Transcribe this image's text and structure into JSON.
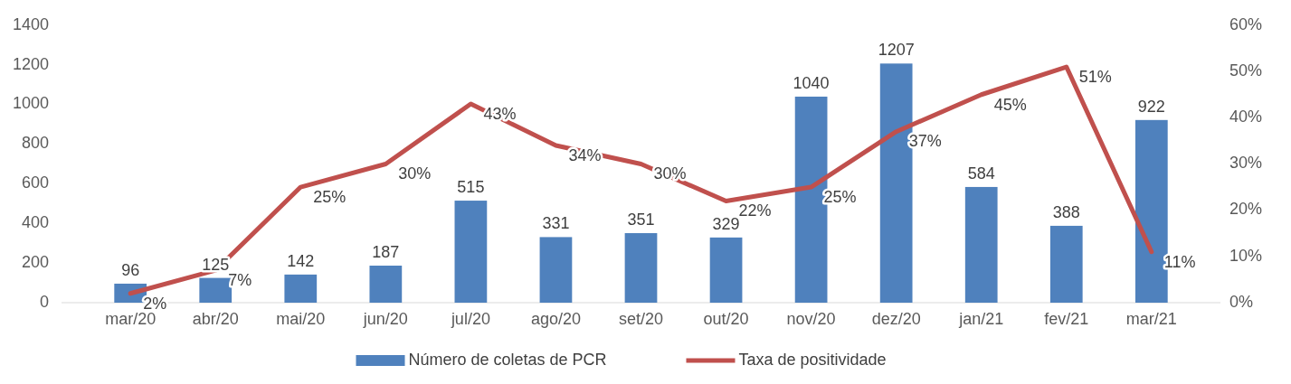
{
  "chart_data": {
    "type": "bar",
    "categories": [
      "mar/20",
      "abr/20",
      "mai/20",
      "jun/20",
      "jul/20",
      "ago/20",
      "set/20",
      "out/20",
      "nov/20",
      "dez/20",
      "jan/21",
      "fev/21",
      "mar/21"
    ],
    "series": [
      {
        "name": "Número de coletas de PCR",
        "color": "#4f81bd",
        "values": [
          96,
          125,
          142,
          187,
          515,
          331,
          351,
          329,
          1040,
          1207,
          584,
          388,
          922
        ],
        "value_labels": [
          "96",
          "125",
          "142",
          "187",
          "515",
          "331",
          "351",
          "329",
          "1040",
          "1207",
          "584",
          "388",
          "922"
        ]
      },
      {
        "name": "Taxa de positividade",
        "type": "line",
        "axis": "y2",
        "color": "#c0504d",
        "values": [
          2,
          7,
          25,
          30,
          43,
          34,
          30,
          22,
          25,
          37,
          45,
          51,
          11
        ],
        "value_labels": [
          "2%",
          "7%",
          "25%",
          "30%",
          "43%",
          "34%",
          "30%",
          "22%",
          "25%",
          "37%",
          "45%",
          "51%",
          "11%"
        ]
      }
    ],
    "ylim": [
      0,
      1400
    ],
    "yticks": [
      0,
      200,
      400,
      600,
      800,
      1000,
      1200,
      1400
    ],
    "y2lim": [
      0,
      60
    ],
    "y2ticks": [
      {
        "value": 0,
        "label": "0%"
      },
      {
        "value": 10,
        "label": "10%"
      },
      {
        "value": 20,
        "label": "20%"
      },
      {
        "value": 30,
        "label": "30%"
      },
      {
        "value": 40,
        "label": "40%"
      },
      {
        "value": 50,
        "label": "50%"
      },
      {
        "value": 60,
        "label": "60%"
      }
    ],
    "grid": false,
    "legend": "bottom",
    "marker": "none",
    "line_style": "solid"
  }
}
